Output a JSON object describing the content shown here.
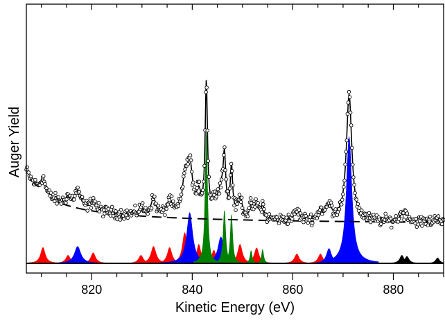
{
  "chart_data": {
    "type": "line",
    "xlabel": "Kinetic Energy (eV)",
    "ylabel": "Auger Yield",
    "xlim": [
      807,
      890
    ],
    "ylim": [
      0,
      100
    ],
    "x_ticks": [
      820,
      840,
      860,
      880
    ],
    "x_tick_labels": [
      "820",
      "840",
      "860",
      "880"
    ],
    "grid": false,
    "legend": "none",
    "colors": {
      "data_points": "#000000",
      "fit_line": "#000000",
      "background_line": "#000000",
      "red_components": "#ff0000",
      "blue_components": "#0000ff",
      "green_components": "#008000",
      "black_components": "#000000"
    },
    "background_curve": {
      "style": "dashed",
      "baseline": 18,
      "amplitude": 5.5,
      "x_offset": 802.3,
      "decay": 22
    },
    "measured_data": {
      "marker": "open-circle",
      "noise": 1.3
    },
    "series": [
      {
        "color_key": "red_components",
        "peaks": [
          {
            "x": 810.3,
            "height": 7.5,
            "width": 0.55
          },
          {
            "x": 815.3,
            "height": 3.8,
            "width": 0.55
          },
          {
            "x": 820.3,
            "height": 5.0,
            "width": 0.55
          },
          {
            "x": 829.8,
            "height": 3.8,
            "width": 0.55
          },
          {
            "x": 832.3,
            "height": 8.0,
            "width": 0.6
          },
          {
            "x": 835.5,
            "height": 7.5,
            "width": 0.55
          },
          {
            "x": 838.5,
            "height": 14.5,
            "width": 0.55
          },
          {
            "x": 841.3,
            "height": 9.0,
            "width": 0.5
          },
          {
            "x": 844.3,
            "height": 6.2,
            "width": 0.5
          },
          {
            "x": 849.5,
            "height": 9.0,
            "width": 0.55
          },
          {
            "x": 852.8,
            "height": 7.3,
            "width": 0.55
          },
          {
            "x": 860.8,
            "height": 4.4,
            "width": 0.55
          },
          {
            "x": 865.5,
            "height": 4.4,
            "width": 0.55
          }
        ]
      },
      {
        "color_key": "blue_components",
        "peaks": [
          {
            "x": 817.2,
            "height": 8.0,
            "width": 0.75
          },
          {
            "x": 839.5,
            "height": 24.0,
            "width": 0.7
          },
          {
            "x": 845.7,
            "height": 12.5,
            "width": 0.7
          },
          {
            "x": 867.2,
            "height": 7.0,
            "width": 0.6
          },
          {
            "x": 871.2,
            "height": 60.0,
            "width": 0.65
          }
        ]
      },
      {
        "color_key": "green_components",
        "peaks": [
          {
            "x": 842.8,
            "height": 62.0,
            "width": 0.28
          },
          {
            "x": 846.4,
            "height": 25.0,
            "width": 0.3
          },
          {
            "x": 847.8,
            "height": 23.0,
            "width": 0.28
          },
          {
            "x": 851.7,
            "height": 6.0,
            "width": 0.25
          },
          {
            "x": 854.0,
            "height": 6.5,
            "width": 0.25
          }
        ]
      },
      {
        "color_key": "black_components",
        "peaks": [
          {
            "x": 881.7,
            "height": 3.8,
            "width": 0.5
          },
          {
            "x": 882.7,
            "height": 3.3,
            "width": 0.5
          },
          {
            "x": 888.8,
            "height": 2.6,
            "width": 0.45
          }
        ]
      }
    ]
  }
}
